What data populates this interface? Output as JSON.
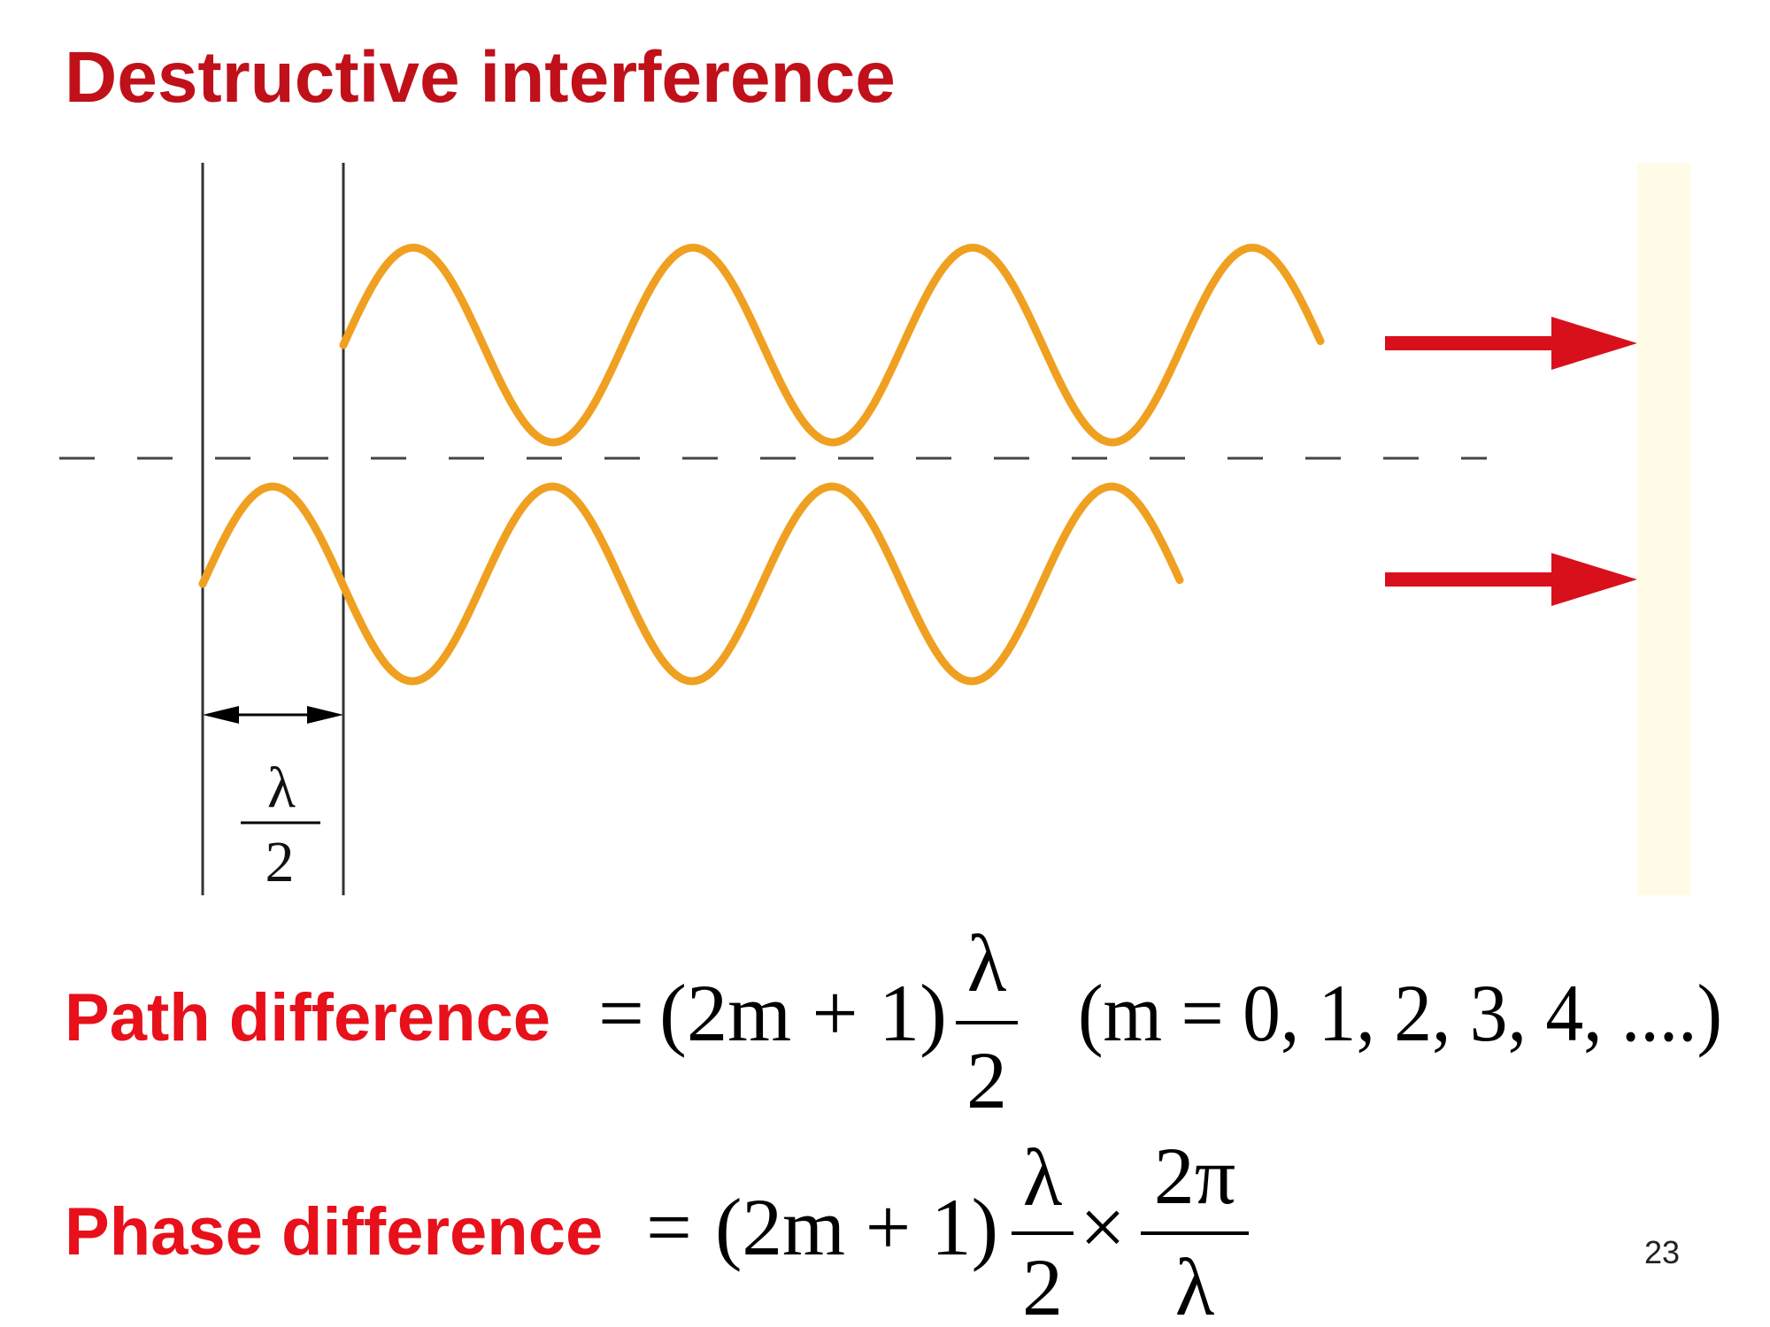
{
  "title": "Destructive  interference",
  "diagram": {
    "wavelength_label": {
      "numerator": "λ",
      "denominator": "2"
    }
  },
  "equations": [
    {
      "label": "Path difference",
      "equals": "=",
      "factor": "(2m + 1)",
      "fraction": {
        "numerator": "λ",
        "denominator": "2"
      },
      "condition": "(m = 0, 1, 2, 3, 4, ....)"
    },
    {
      "label": "Phase difference",
      "equals": "=",
      "factor": "(2m + 1)",
      "fraction": {
        "numerator": "λ",
        "denominator": "2"
      },
      "times": "×",
      "fraction2": {
        "numerator": "2π",
        "denominator": "λ"
      }
    }
  ],
  "page_number": "23"
}
